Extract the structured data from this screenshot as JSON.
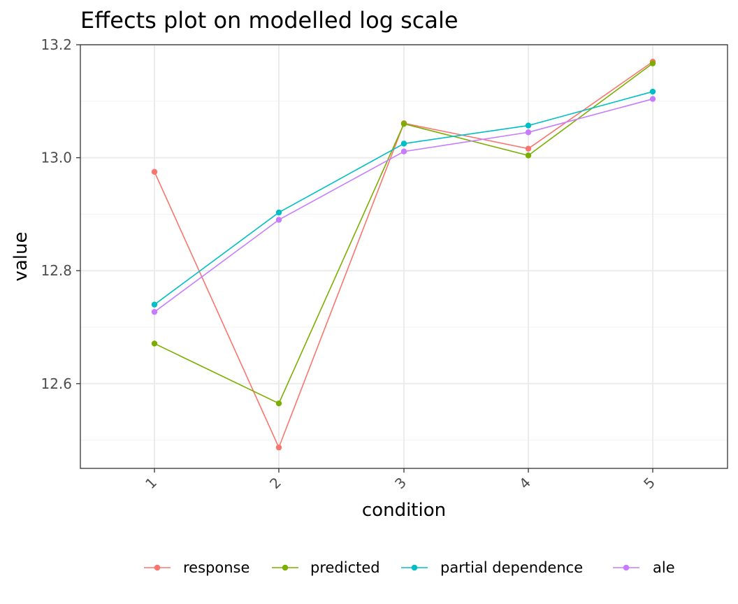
{
  "chart_data": {
    "type": "line",
    "title": "Effects plot on modelled log scale",
    "xlabel": "condition",
    "ylabel": "value",
    "categories": [
      "1",
      "2",
      "3",
      "4",
      "5"
    ],
    "ylim": [
      12.45,
      13.2
    ],
    "yticks": [
      12.6,
      12.8,
      13.0,
      13.2
    ],
    "ytick_labels": [
      "12.6",
      "12.8",
      "13.0",
      "13.2"
    ],
    "grid": true,
    "legend_position": "bottom",
    "series": [
      {
        "name": "response",
        "color": "#F8766D",
        "values": [
          12.975,
          12.487,
          13.061,
          13.016,
          13.17
        ]
      },
      {
        "name": "predicted",
        "color": "#7CAE00",
        "values": [
          12.671,
          12.565,
          13.06,
          13.004,
          13.167
        ]
      },
      {
        "name": "partial dependence",
        "color": "#00BFC4",
        "values": [
          12.74,
          12.903,
          13.025,
          13.057,
          13.117
        ]
      },
      {
        "name": "ale",
        "color": "#C77CFF",
        "values": [
          12.727,
          12.89,
          13.011,
          13.045,
          13.104
        ]
      }
    ]
  }
}
